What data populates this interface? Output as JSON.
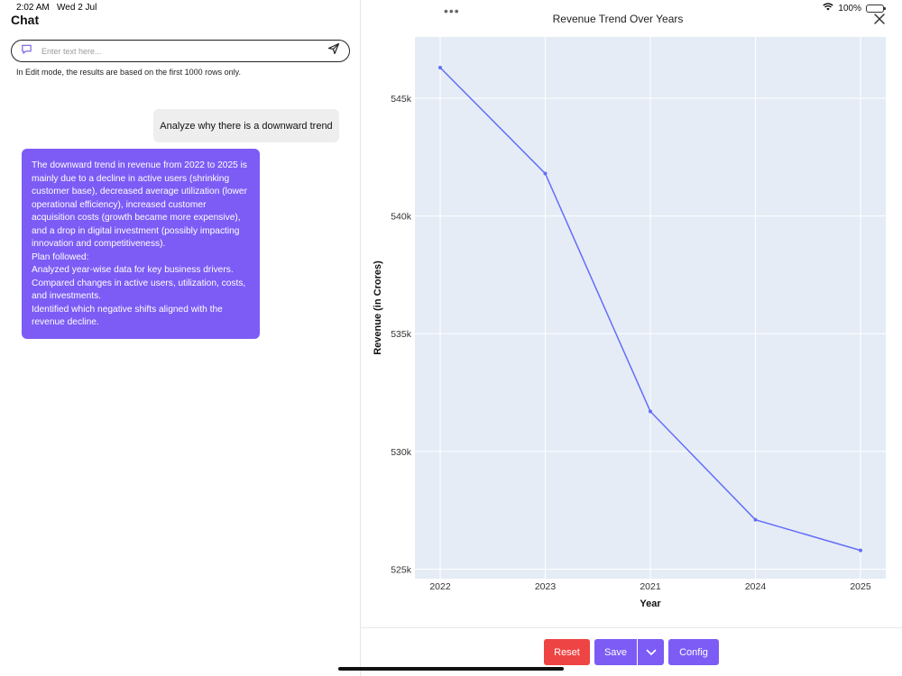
{
  "status": {
    "time": "2:02 AM",
    "date": "Wed 2 Jul",
    "battery": "100%",
    "battery_level": 1.0
  },
  "chat": {
    "title": "Chat",
    "input_placeholder": "Enter text here...",
    "hint": "In Edit mode, the results are based on the first 1000 rows only.",
    "user_message": "Analyze why there is a downward trend",
    "assistant_lines": [
      "The downward trend in revenue from 2022 to 2025 is mainly due to a decline in active users (shrinking customer base), decreased average utilization (lower operational efficiency), increased customer acquisition costs (growth became more expensive), and a drop in digital investment (possibly impacting innovation and competitiveness).",
      "Plan followed:",
      "Analyzed year-wise data for key business drivers.",
      "Compared changes in active users, utilization, costs, and investments.",
      "Identified which negative shifts aligned with the revenue decline."
    ]
  },
  "panel": {
    "more_icon": "ellipsis-icon",
    "close_icon": "close-icon",
    "buttons": {
      "reset": "Reset",
      "save": "Save",
      "config": "Config"
    },
    "colors": {
      "reset": "#ef4444",
      "accent": "#7c5cf5"
    }
  },
  "chart_data": {
    "type": "line",
    "title": "Revenue Trend Over Years",
    "xlabel": "Year",
    "ylabel": "Revenue (in Crores)",
    "categories": [
      "2022",
      "2023",
      "2021",
      "2024",
      "2025"
    ],
    "values": [
      546300,
      541800,
      531700,
      527100,
      525800
    ],
    "ylim": [
      524600,
      547600
    ],
    "yticks": [
      525000,
      530000,
      535000,
      540000,
      545000
    ],
    "ytick_labels": [
      "525k",
      "530k",
      "535k",
      "540k",
      "545k"
    ],
    "grid": true,
    "line_color": "#636efa",
    "plot_bg": "#e5ecf6"
  }
}
